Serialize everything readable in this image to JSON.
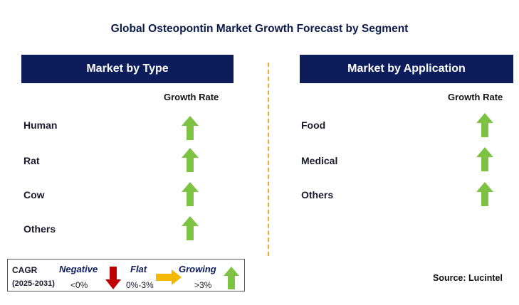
{
  "title": "Global Osteopontin Market Growth Forecast by Segment",
  "left_panel": {
    "header": "Market by Type",
    "growth_label": "Growth Rate",
    "items": [
      {
        "label": "Human",
        "trend": "growing"
      },
      {
        "label": "Rat",
        "trend": "growing"
      },
      {
        "label": "Cow",
        "trend": "growing"
      },
      {
        "label": "Others",
        "trend": "growing"
      }
    ]
  },
  "right_panel": {
    "header": "Market by Application",
    "growth_label": "Growth Rate",
    "items": [
      {
        "label": "Food",
        "trend": "growing"
      },
      {
        "label": "Medical",
        "trend": "growing"
      },
      {
        "label": "Others",
        "trend": "growing"
      }
    ]
  },
  "legend": {
    "cagr_label": "CAGR",
    "period": "(2025-2031)",
    "negative_label": "Negative",
    "negative_range": "<0%",
    "flat_label": "Flat",
    "flat_range": "0%-3%",
    "growing_label": "Growing",
    "growing_range": ">3%"
  },
  "source": "Source: Lucintel",
  "colors": {
    "header_bg": "#0d1c5a",
    "growing_arrow": "#7dc242",
    "negative_arrow": "#c00000",
    "flat_arrow": "#f5b800",
    "divider": "#f0a830"
  }
}
